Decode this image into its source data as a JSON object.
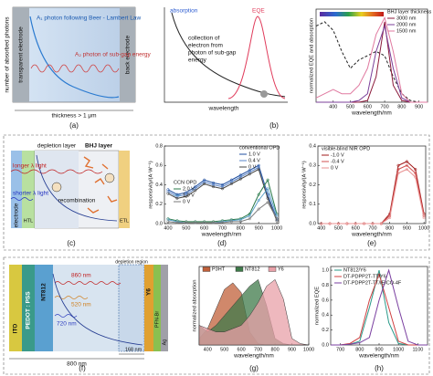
{
  "captions": [
    "(a)",
    "(b)",
    "(c)",
    "(d)",
    "(e)",
    "(f)",
    "(g)",
    "(h)"
  ],
  "panel_a": {
    "y_label": "number of absorbed photons",
    "left": "transparent electrode",
    "right": "back electrode",
    "a1": "A₁ photon following Beer - Lambert Law",
    "a2": "A₂ photon of sub-gap energy",
    "thickness": "thickness > 1 μm"
  },
  "panel_b": {
    "absorption": "absorption",
    "eqe": "EQE",
    "note": [
      "collection of",
      "electron from",
      "photon of sub-gap",
      "energy"
    ],
    "x_label": "wavelength"
  },
  "panel_c": {
    "depletion": "depletion layer",
    "bhj": "BHJ layer",
    "longer": "longer λ light",
    "shorter": "shorter λ light",
    "recombination": "recombination",
    "electrode": "electrode",
    "htl": "HTL",
    "etl": "ETL"
  },
  "panel_f": {
    "ito": "ITO",
    "pedot": "PEDOT : PSS",
    "nt812": "NT812",
    "y6": "Y6",
    "pfn": "PFN-Br",
    "ag": "Ag",
    "w860": "860 nm",
    "w520": "520 nm",
    "w720": "720 nm",
    "d800": "800 nm",
    "d168": "168 nm",
    "depletion": "depletion region"
  },
  "chart_data": [
    {
      "type": "line",
      "x_label": "wavelength/nm",
      "y_label": "normalized EQE and absorption",
      "x": [
        300,
        350,
        400,
        450,
        500,
        550,
        600,
        650,
        700,
        750,
        800,
        850,
        900,
        950
      ],
      "xlim": [
        300,
        950
      ],
      "xticks": [
        400,
        500,
        600,
        700,
        800,
        900
      ],
      "ylim": [
        0,
        1.1
      ],
      "series": [
        {
          "color": "#222222",
          "dashed": true,
          "values": [
            0.9,
            0.95,
            0.85,
            0.6,
            0.4,
            0.5,
            0.55,
            0.6,
            0.55,
            0.3,
            0.1,
            0.02,
            0,
            0
          ]
        }
      ],
      "series_groups": [
        {
          "title": "BHJ layer thickness",
          "series": [
            {
              "name": "3000 nm",
              "color": "#8b1a3a",
              "values": [
                0,
                0,
                0,
                0,
                0,
                0,
                0.02,
                0.3,
                0.95,
                0.2,
                0.02,
                0,
                0,
                0
              ]
            },
            {
              "name": "2000 nm",
              "color": "#7b3f9a",
              "values": [
                0,
                0,
                0,
                0,
                0,
                0.02,
                0.1,
                0.6,
                0.9,
                0.4,
                0.05,
                0,
                0,
                0
              ]
            },
            {
              "name": "1500 nm",
              "color": "#e07aa0",
              "values": [
                0.05,
                0.1,
                0.15,
                0.1,
                0.1,
                0.2,
                0.4,
                0.8,
                1.0,
                0.6,
                0.1,
                0,
                0,
                0
              ]
            }
          ]
        }
      ]
    },
    {
      "type": "line",
      "markers": true,
      "x_label": "wavelength/nm",
      "y_label": "responsivity/(A·W⁻¹)",
      "x": [
        400,
        450,
        500,
        550,
        600,
        650,
        700,
        750,
        800,
        850,
        900,
        950,
        1000
      ],
      "xlim": [
        380,
        1010
      ],
      "xticks": [
        400,
        500,
        600,
        700,
        800,
        900,
        1000
      ],
      "ylim": [
        0,
        0.8
      ],
      "yticks": [
        {
          "value": 0,
          "label": "0.0"
        },
        0.2,
        0.4,
        0.6,
        0.8
      ],
      "series_groups": [
        {
          "title": "conventional OPD",
          "series": [
            {
              "name": "1.0 V",
              "color": "#1f4fa0",
              "values": [
                0.35,
                0.3,
                0.32,
                0.38,
                0.45,
                0.42,
                0.4,
                0.45,
                0.5,
                0.55,
                0.6,
                0.3,
                0.05
              ]
            },
            {
              "name": "0.4 V",
              "color": "#5a84c8",
              "values": [
                0.33,
                0.28,
                0.3,
                0.36,
                0.43,
                0.4,
                0.38,
                0.43,
                0.48,
                0.53,
                0.58,
                0.28,
                0.04
              ]
            },
            {
              "name": "0 V",
              "color": "#444444",
              "values": [
                0.31,
                0.26,
                0.28,
                0.34,
                0.41,
                0.38,
                0.36,
                0.41,
                0.46,
                0.51,
                0.56,
                0.26,
                0.03
              ]
            }
          ]
        },
        {
          "title": "CCN OPD",
          "series": [
            {
              "name": "2.0 V",
              "color": "#2a7a4a",
              "values": [
                0.05,
                0.03,
                0.02,
                0.02,
                0.02,
                0.02,
                0.03,
                0.04,
                0.05,
                0.1,
                0.3,
                0.45,
                0.1
              ]
            },
            {
              "name": "1.0 V",
              "color": "#5aa0c8",
              "values": [
                0.04,
                0.02,
                0.01,
                0.01,
                0.01,
                0.01,
                0.02,
                0.03,
                0.04,
                0.08,
                0.24,
                0.36,
                0.08
              ]
            },
            {
              "name": "0 V",
              "color": "#7a7a7a",
              "values": [
                0.02,
                0.01,
                0.01,
                0.01,
                0.01,
                0.01,
                0.01,
                0.02,
                0.02,
                0.05,
                0.15,
                0.22,
                0.05
              ]
            }
          ]
        }
      ]
    },
    {
      "type": "line",
      "markers": true,
      "x_label": "wavelength/nm",
      "y_label": "responsivity/(A·W⁻¹)",
      "x": [
        400,
        450,
        500,
        550,
        600,
        650,
        700,
        750,
        800,
        850,
        900,
        950,
        1000
      ],
      "xlim": [
        380,
        1010
      ],
      "xticks": [
        400,
        500,
        600,
        700,
        800,
        900,
        1000
      ],
      "ylim": [
        0,
        0.4
      ],
      "yticks": [
        {
          "value": 0,
          "label": "0.0"
        },
        0.1,
        0.2,
        0.3,
        0.4
      ],
      "series_groups": [
        {
          "title": "visible-blind NIR OPD",
          "series": [
            {
              "name": "-1.0 V",
              "color": "#a01818",
              "values": [
                0,
                0,
                0,
                0,
                0,
                0,
                0,
                0,
                0.05,
                0.3,
                0.32,
                0.28,
                0.05
              ]
            },
            {
              "name": "-0.4 V",
              "color": "#d05050",
              "values": [
                0,
                0,
                0,
                0,
                0,
                0,
                0,
                0,
                0.04,
                0.28,
                0.3,
                0.26,
                0.04
              ]
            },
            {
              "name": "0 V",
              "color": "#e89090",
              "values": [
                0,
                0,
                0,
                0,
                0,
                0,
                0,
                0,
                0.03,
                0.26,
                0.28,
                0.24,
                0.03
              ]
            }
          ]
        }
      ]
    },
    {
      "type": "area",
      "x_label": "wavelength/nm",
      "y_label": "normalized absorption",
      "x": [
        350,
        400,
        450,
        500,
        550,
        600,
        650,
        700,
        750,
        800,
        850,
        900,
        950,
        1000
      ],
      "xlim": [
        350,
        1000
      ],
      "xticks": [
        400,
        500,
        600,
        700,
        800,
        900,
        1000
      ],
      "ylim": [
        0,
        1.2
      ],
      "series_groups": [
        {
          "series": [
            {
              "name": "P3HT",
              "color": "#c0603a",
              "values": [
                0.1,
                0.25,
                0.55,
                0.85,
                0.95,
                0.8,
                0.2,
                0.02,
                0,
                0,
                0,
                0,
                0,
                0
              ]
            },
            {
              "name": "NT812",
              "color": "#3f7a4a",
              "values": [
                0.3,
                0.2,
                0.3,
                0.45,
                0.6,
                0.75,
                0.9,
                1.0,
                0.6,
                0.1,
                0.02,
                0,
                0,
                0
              ]
            },
            {
              "name": "Y6",
              "color": "#e8a0a8",
              "values": [
                0.3,
                0.25,
                0.2,
                0.2,
                0.25,
                0.3,
                0.45,
                0.65,
                0.9,
                1.0,
                0.7,
                0.1,
                0.02,
                0
              ]
            }
          ]
        }
      ]
    },
    {
      "type": "line",
      "x_label": "wavelength/nm",
      "y_label": "normalized EQE",
      "x": [
        650,
        700,
        750,
        800,
        850,
        900,
        950,
        1000,
        1050,
        1100,
        1150
      ],
      "xlim": [
        650,
        1150
      ],
      "xticks": [
        700,
        800,
        900,
        1000,
        1100
      ],
      "ylim": [
        0,
        1.05
      ],
      "yticks": [
        {
          "value": 0,
          "label": "0.0"
        },
        0.2,
        0.4,
        0.6,
        0.8,
        {
          "value": 1,
          "label": "1.0"
        }
      ],
      "series_groups": [
        {
          "series": [
            {
              "name": "NT812/Y6",
              "color": "#2a9a8a",
              "values": [
                0,
                0,
                0.01,
                0.05,
                0.5,
                1.0,
                0.3,
                0.02,
                0,
                0,
                0
              ]
            },
            {
              "name": "DT-PDPP2T-TT/Y6",
              "color": "#d04040",
              "values": [
                0,
                0,
                0.02,
                0.1,
                0.6,
                0.95,
                0.5,
                0.05,
                0,
                0,
                0
              ]
            },
            {
              "name": "DT-PDPP2T-TT/IEICO-4F",
              "color": "#7a3fa0",
              "values": [
                0,
                0,
                0.01,
                0.03,
                0.1,
                0.6,
                1.0,
                0.5,
                0.05,
                0,
                0
              ]
            }
          ]
        }
      ]
    }
  ]
}
